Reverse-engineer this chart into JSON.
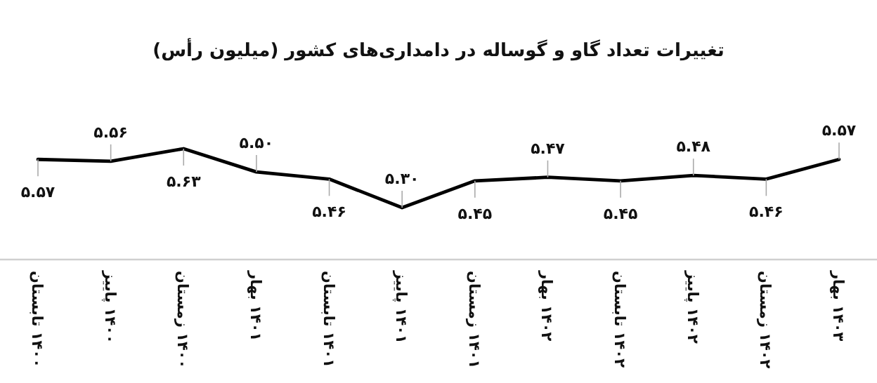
{
  "chart_data": {
    "type": "line",
    "title": "تغییرات تعداد گاو و گوساله در دامداری‌های کشور (میلیون رأس)",
    "categories": [
      "۱۴۰۰ تابستان",
      "۱۴۰۰ پاییز",
      "۱۴۰۰ زمستان",
      "۱۴۰۱ بهار",
      "۱۴۰۱ تابستان",
      "۱۴۰۱ پاییز",
      "۱۴۰۱ زمستان",
      "۱۴۰۲ بهار",
      "۱۴۰۲ تابستان",
      "۱۴۰۲ پاییز",
      "۱۴۰۲ زمستان",
      "۱۴۰۳ بهار"
    ],
    "values": [
      5.57,
      5.56,
      5.63,
      5.5,
      5.46,
      5.3,
      5.45,
      5.47,
      5.45,
      5.48,
      5.46,
      5.57
    ],
    "value_labels": [
      "۵.۵۷",
      "۵.۵۶",
      "۵.۶۳",
      "۵.۵۰",
      "۵.۴۶",
      "۵.۳۰",
      "۵.۴۵",
      "۵.۴۷",
      "۵.۴۵",
      "۵.۴۸",
      "۵.۴۶",
      "۵.۵۷"
    ],
    "color": "#000000",
    "marker": "none",
    "line_style": "solid",
    "grid": false
  }
}
